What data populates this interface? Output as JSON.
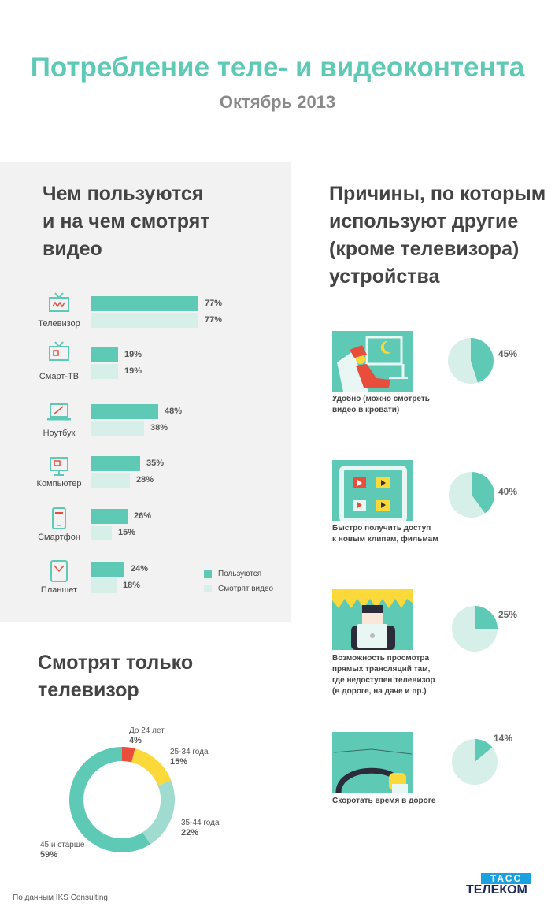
{
  "header": {
    "title": "Потребление теле- и видеоконтента",
    "subtitle": "Октябрь 2013"
  },
  "devices_section": {
    "title_lines": [
      "Чем пользуются",
      "и на чем смотрят",
      "видео"
    ]
  },
  "reasons_section": {
    "title_lines": [
      "Причины, по которым",
      "используют другие",
      "(кроме телевизора)",
      "устройства"
    ]
  },
  "tv_only_section": {
    "title_lines": [
      "Смотрят только",
      "телевизор"
    ]
  },
  "legend": {
    "use": "Пользуются",
    "watch": "Смотрят видео"
  },
  "colors": {
    "use": "#5ec9b5",
    "watch": "#d6efe9",
    "red": "#e94e3d",
    "yellow": "#fbd93b",
    "teal": "#5ec9b5",
    "light_teal": "#9fdccf"
  },
  "chart_data": [
    {
      "type": "bar",
      "categories": [
        "Телевизор",
        "Смарт-ТВ",
        "Ноутбук",
        "Компьютер",
        "Смартфон",
        "Планшет"
      ],
      "series": [
        {
          "name": "Пользуются",
          "values": [
            77,
            19,
            48,
            35,
            26,
            24
          ]
        },
        {
          "name": "Смотрят видео",
          "values": [
            77,
            19,
            38,
            28,
            15,
            18
          ]
        }
      ],
      "value_labels": {
        "use": [
          "77%",
          "19%",
          "48%",
          "35%",
          "26%",
          "24%"
        ],
        "watch": [
          "77%",
          "19%",
          "38%",
          "28%",
          "15%",
          "18%"
        ]
      },
      "legend": "bottom-right"
    },
    {
      "type": "pie",
      "categories": [
        "Удобно (можно смотреть видео в кровати)",
        "Быстро получить доступ к новым клипам, фильмам",
        "Возможность просмотра прямых трансляций там, где недоступен телевизор (в дороге, на даче и пр.)",
        "Скоротать время в дороге"
      ],
      "values": [
        45,
        40,
        25,
        14
      ],
      "text_lines": [
        [
          "Удобно (можно смотреть",
          "видео в кровати)"
        ],
        [
          "Быстро получить доступ",
          "к новым клипам, фильмам"
        ],
        [
          "Возможность просмотра",
          "прямых трансляций там,",
          "где недоступен телевизор",
          "(в дороге, на даче и пр.)"
        ],
        [
          "Скоротать время в дороге"
        ]
      ],
      "labels": [
        "45%",
        "40%",
        "25%",
        "14%"
      ]
    },
    {
      "type": "pie",
      "categories": [
        "До 24 лет",
        "25-34 года",
        "35-44 года",
        "45 и старше"
      ],
      "values": [
        4,
        15,
        22,
        59
      ],
      "labels": [
        "4%",
        "15%",
        "22%",
        "59%"
      ],
      "colors": [
        "#e94e3d",
        "#fbd93b",
        "#9fdccf",
        "#5ec9b5"
      ]
    }
  ],
  "footer": {
    "source": "По данным IKS Consulting",
    "logo_top": "ТАСС",
    "logo_bottom": "ТЕЛЕКОМ"
  }
}
